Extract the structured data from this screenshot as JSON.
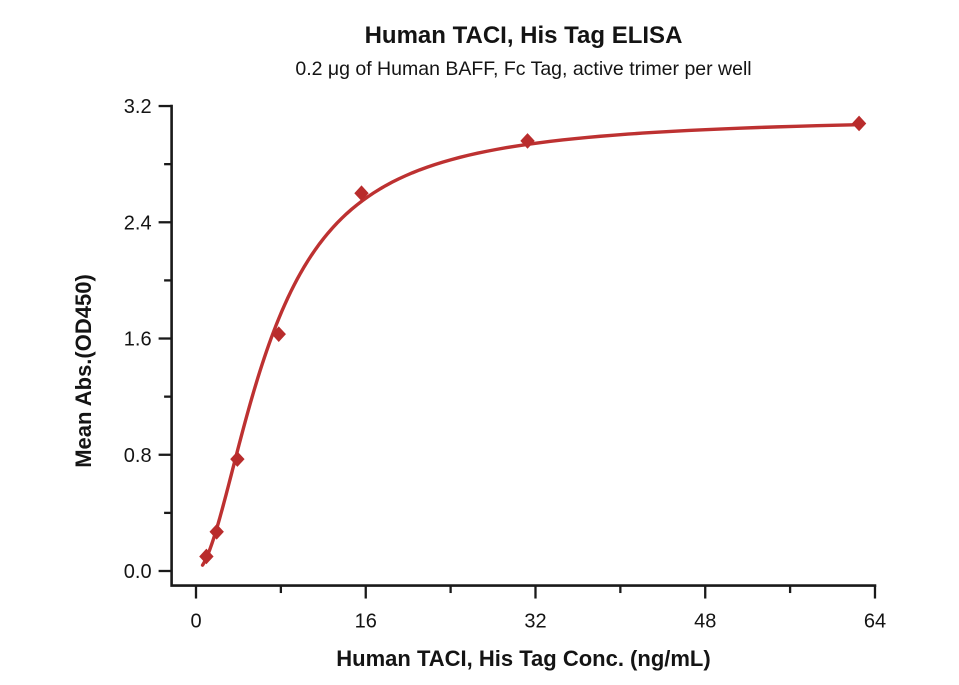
{
  "figure": {
    "title": "Human TACI, His Tag ELISA",
    "subtitle": "0.2 μg of Human BAFF, Fc Tag, active trimer per well"
  },
  "chart_data": {
    "type": "scatter",
    "title": "Human TACI, His Tag ELISA",
    "subtitle": "0.2 μg of Human BAFF, Fc Tag, active trimer per well",
    "xlabel": "Human TACI, His Tag Conc. (ng/mL)",
    "ylabel": "Mean Abs.(OD450)",
    "series": [
      {
        "name": "Human TACI, His Tag",
        "marker": "diamond",
        "x": [
          0.98,
          1.95,
          3.9,
          7.8,
          15.6,
          31.25,
          62.5
        ],
        "y": [
          0.1,
          0.27,
          0.77,
          1.63,
          2.6,
          2.96,
          3.08
        ]
      }
    ],
    "fit_curve": {
      "model": "4PL",
      "bottom": 0.0,
      "top": 3.13,
      "ec50": 6.9,
      "hill": 1.8,
      "x_start": 0.62,
      "x_end": 62.5
    },
    "xlim": [
      -2.3,
      64
    ],
    "ylim": [
      -0.1,
      3.2
    ],
    "xticks_major": [
      0,
      16,
      32,
      48,
      64
    ],
    "xtick_labels": [
      "0",
      "16",
      "32",
      "48",
      "64"
    ],
    "xticks_minor": [
      8,
      24,
      40,
      56
    ],
    "yticks_major": [
      0,
      0.8,
      1.6,
      2.4,
      3.2
    ],
    "ytick_labels": [
      "0.0",
      "0.8",
      "1.6",
      "2.4",
      "3.2"
    ],
    "yticks_minor": [
      0.4,
      1.2,
      2.0,
      2.8
    ],
    "grid": false,
    "legend": "none",
    "colors": {
      "curve": "#bd3131",
      "marker": "#b92c2c",
      "axis": "#1a1a1a",
      "text": "#141414",
      "background": "#ffffff"
    }
  }
}
